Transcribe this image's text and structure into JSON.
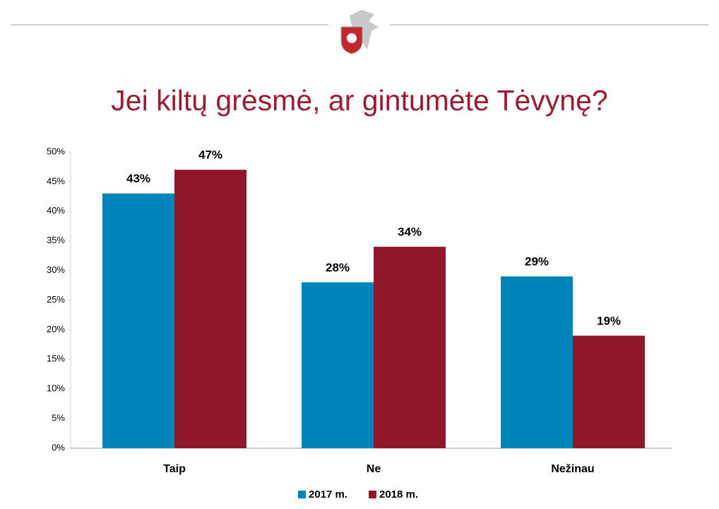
{
  "chart_data": {
    "type": "bar",
    "title": "Jei kiltų grėsmė, ar gintumėte Tėvynę?",
    "categories": [
      "Taip",
      "Ne",
      "Nežinau"
    ],
    "series": [
      {
        "name": "2017 m.",
        "color": "#0084b9",
        "values": [
          43,
          28,
          29
        ],
        "value_labels": [
          "43%",
          "28%",
          "29%"
        ]
      },
      {
        "name": "2018 m.",
        "color": "#8f1729",
        "values": [
          47,
          34,
          19
        ],
        "value_labels": [
          "47%",
          "34%",
          "19%"
        ]
      }
    ],
    "ylim": [
      0,
      50
    ],
    "yticks": [
      {
        "value": 0,
        "label": "0%"
      },
      {
        "value": 5,
        "label": "5%"
      },
      {
        "value": 10,
        "label": "10%"
      },
      {
        "value": 15,
        "label": "15%"
      },
      {
        "value": 20,
        "label": "20%"
      },
      {
        "value": 25,
        "label": "25%"
      },
      {
        "value": 30,
        "label": "30%"
      },
      {
        "value": 35,
        "label": "35%"
      },
      {
        "value": 40,
        "label": "40%"
      },
      {
        "value": 45,
        "label": "45%"
      },
      {
        "value": 50,
        "label": "50%"
      }
    ],
    "grid": false,
    "legend": "bottom"
  }
}
